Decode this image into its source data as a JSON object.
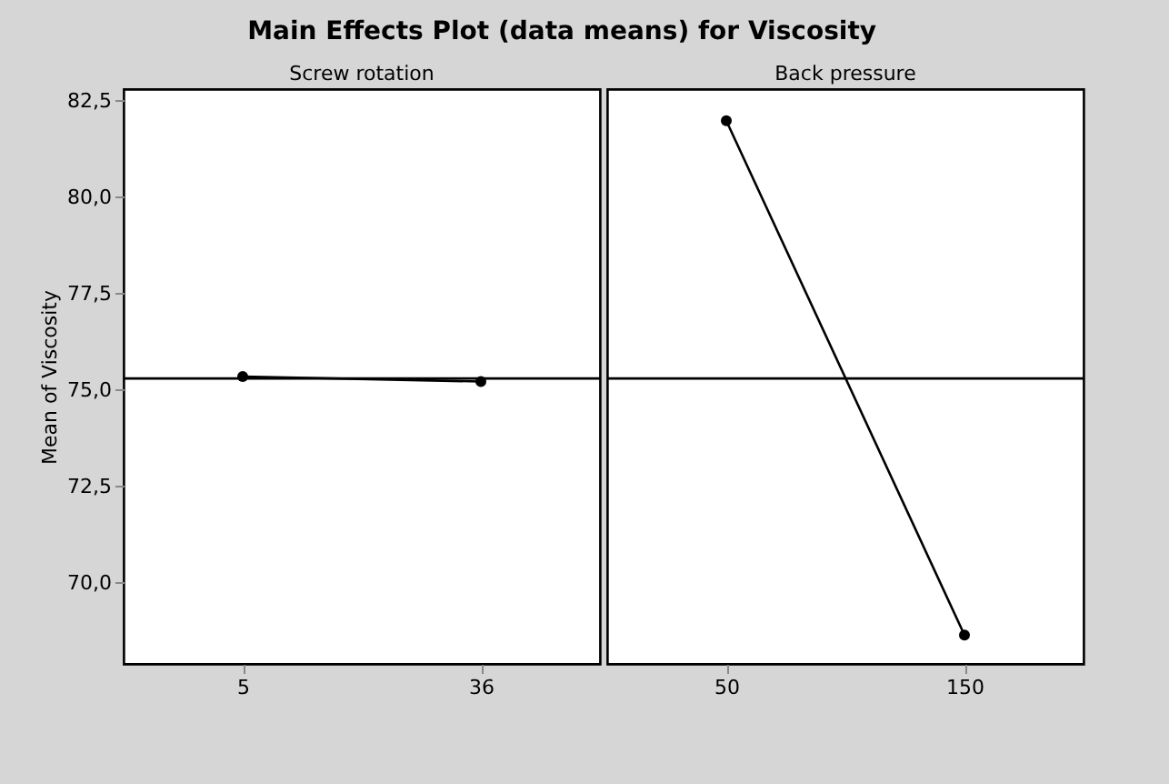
{
  "chart_data": [
    {
      "type": "line",
      "title": "Main Effects Plot (data means) for Viscosity",
      "xlabel": "Screw rotation",
      "ylabel": "Mean of Viscosity",
      "categories": [
        "5",
        "36"
      ],
      "series": [
        {
          "color": "#000000",
          "values": [
            75.35,
            75.22
          ]
        }
      ],
      "ylim": [
        67.9,
        82.8
      ],
      "yticks": [
        {
          "value": 70,
          "label": "70,0"
        },
        {
          "value": 72.5,
          "label": "72,5"
        },
        {
          "value": 75,
          "label": "75,0"
        },
        {
          "value": 77.5,
          "label": "77,5"
        },
        {
          "value": 80,
          "label": "80,0"
        },
        {
          "value": 82.5,
          "label": "82,5"
        }
      ],
      "ref_lines": [
        {
          "axis": "y",
          "value": 75.3,
          "color": "#000000"
        }
      ],
      "marker": "circle",
      "line_style": "solid",
      "grid": false
    },
    {
      "type": "line",
      "xlabel": "Back pressure",
      "categories": [
        "50",
        "150"
      ],
      "series": [
        {
          "color": "#000000",
          "values": [
            81.98,
            68.65
          ]
        }
      ],
      "ylim": [
        67.9,
        82.8
      ],
      "ref_lines": [
        {
          "axis": "y",
          "value": 75.3,
          "color": "#000000"
        }
      ],
      "marker": "circle",
      "line_style": "solid",
      "grid": false,
      "tick_labels": "x"
    }
  ]
}
